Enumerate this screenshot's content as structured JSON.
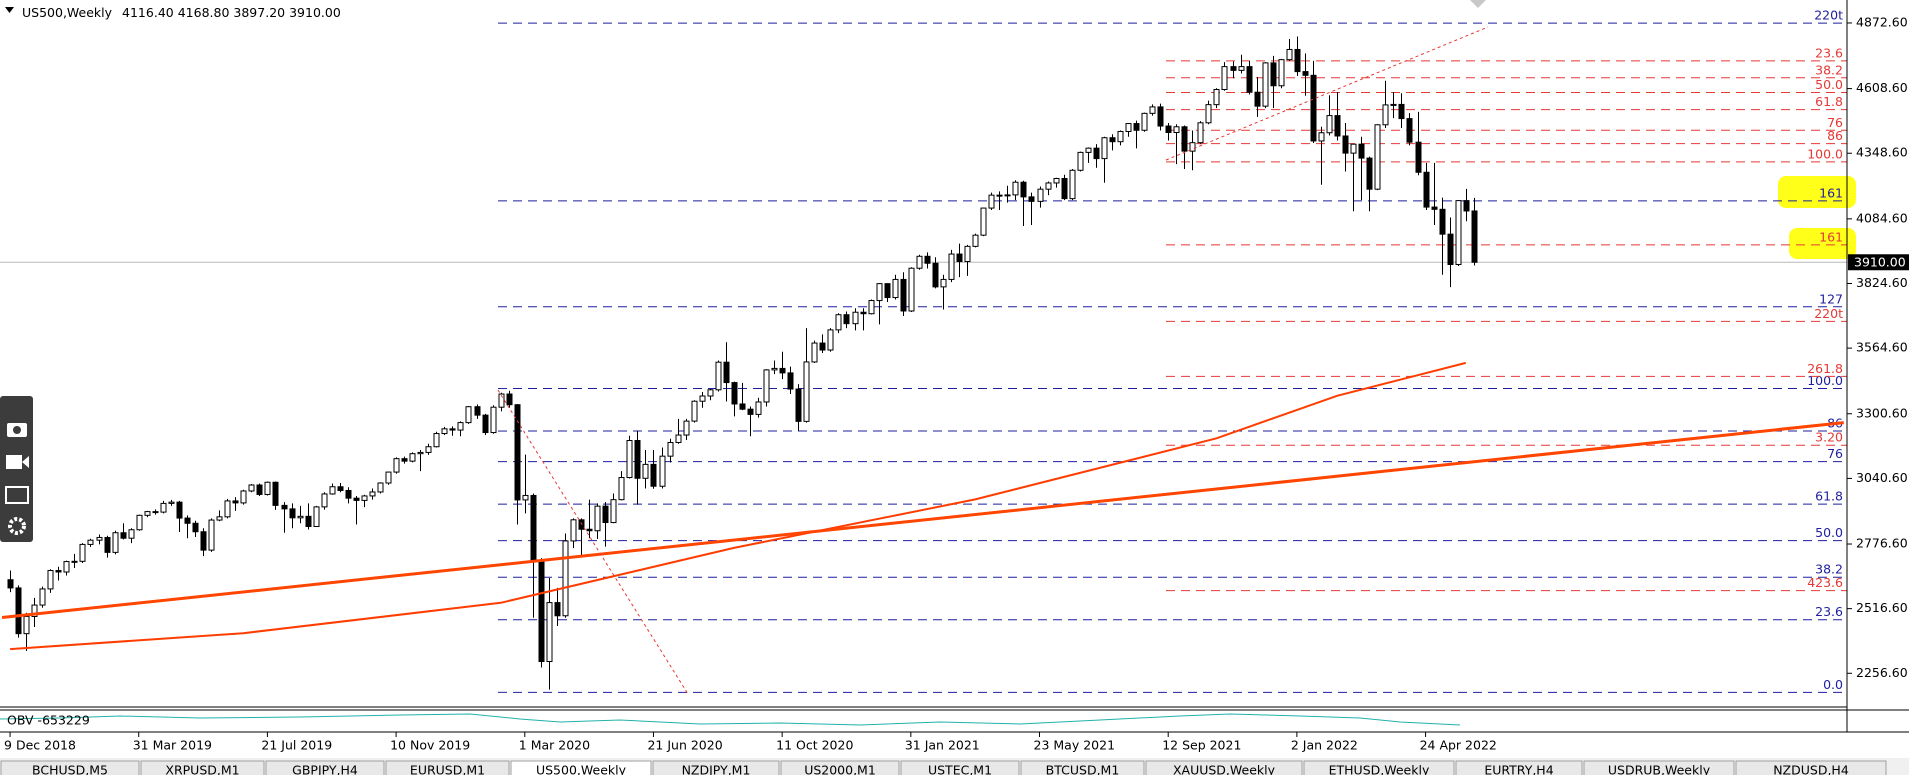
{
  "chart_data": {
    "type": "candlestick",
    "title": "US500,Weekly",
    "ohlc": [
      "4116.40",
      "4168.80",
      "3897.20",
      "3910.00"
    ],
    "ylim": [
      2125,
      4965
    ],
    "yticks": [
      {
        "value": 4872.6,
        "label": "4872.60"
      },
      {
        "value": 4608.6,
        "label": "4608.60"
      },
      {
        "value": 4348.6,
        "label": "4348.60"
      },
      {
        "value": 4084.6,
        "label": "4084.60"
      },
      {
        "value": 3824.6,
        "label": "3824.60"
      },
      {
        "value": 3564.6,
        "label": "3564.60"
      },
      {
        "value": 3300.6,
        "label": "3300.60"
      },
      {
        "value": 3040.6,
        "label": "3040.60"
      },
      {
        "value": 2776.6,
        "label": "2776.60"
      },
      {
        "value": 2516.6,
        "label": "2516.60"
      },
      {
        "value": 2256.6,
        "label": "2256.60"
      }
    ],
    "xlim": [
      -1.25,
      228.4
    ],
    "xticks": [
      {
        "value": 0,
        "label": "9 Dec 2018"
      },
      {
        "value": 16,
        "label": "31 Mar 2019"
      },
      {
        "value": 32,
        "label": "21 Jul 2019"
      },
      {
        "value": 48,
        "label": "10 Nov 2019"
      },
      {
        "value": 64,
        "label": "1 Mar 2020"
      },
      {
        "value": 80,
        "label": "21 Jun 2020"
      },
      {
        "value": 96,
        "label": "11 Oct 2020"
      },
      {
        "value": 112,
        "label": "31 Jan 2021"
      },
      {
        "value": 128,
        "label": "23 May 2021"
      },
      {
        "value": 144,
        "label": "12 Sep 2021"
      },
      {
        "value": 160,
        "label": "2 Jan 2022"
      },
      {
        "value": 176,
        "label": "24 Apr 2022"
      }
    ],
    "bull_color": "#ffffff",
    "bear_color": "#000000",
    "candles": [
      [
        2633,
        2670,
        2583,
        2600
      ],
      [
        2600,
        2610,
        2400,
        2416
      ],
      [
        2416,
        2500,
        2346,
        2485
      ],
      [
        2485,
        2560,
        2443,
        2531
      ],
      [
        2531,
        2605,
        2520,
        2596
      ],
      [
        2596,
        2675,
        2580,
        2670
      ],
      [
        2670,
        2685,
        2630,
        2664
      ],
      [
        2664,
        2710,
        2650,
        2706
      ],
      [
        2706,
        2737,
        2680,
        2707
      ],
      [
        2707,
        2780,
        2700,
        2775
      ],
      [
        2775,
        2798,
        2765,
        2792
      ],
      [
        2792,
        2815,
        2775,
        2803
      ],
      [
        2803,
        2810,
        2722,
        2743
      ],
      [
        2743,
        2830,
        2735,
        2822
      ],
      [
        2822,
        2860,
        2795,
        2800
      ],
      [
        2800,
        2840,
        2780,
        2834
      ],
      [
        2834,
        2895,
        2830,
        2892
      ],
      [
        2892,
        2910,
        2885,
        2907
      ],
      [
        2907,
        2916,
        2895,
        2905
      ],
      [
        2905,
        2950,
        2900,
        2940
      ],
      [
        2940,
        2954,
        2930,
        2945
      ],
      [
        2945,
        2950,
        2825,
        2881
      ],
      [
        2881,
        2892,
        2800,
        2860
      ],
      [
        2860,
        2870,
        2805,
        2826
      ],
      [
        2826,
        2840,
        2728,
        2752
      ],
      [
        2752,
        2880,
        2745,
        2873
      ],
      [
        2873,
        2912,
        2868,
        2886
      ],
      [
        2886,
        2958,
        2880,
        2950
      ],
      [
        2950,
        2965,
        2910,
        2942
      ],
      [
        2942,
        2995,
        2935,
        2990
      ],
      [
        2990,
        3018,
        2985,
        3014
      ],
      [
        3014,
        3020,
        2970,
        2976
      ],
      [
        2976,
        3028,
        2972,
        3025
      ],
      [
        3025,
        3028,
        2914,
        2932
      ],
      [
        2932,
        2945,
        2822,
        2918
      ],
      [
        2918,
        2940,
        2840,
        2882
      ],
      [
        2882,
        2930,
        2860,
        2888
      ],
      [
        2888,
        2940,
        2835,
        2847
      ],
      [
        2847,
        2930,
        2845,
        2926
      ],
      [
        2926,
        2985,
        2915,
        2978
      ],
      [
        2978,
        3020,
        2975,
        3007
      ],
      [
        3007,
        3022,
        2985,
        2992
      ],
      [
        2992,
        3005,
        2940,
        2961
      ],
      [
        2961,
        2970,
        2855,
        2952
      ],
      [
        2952,
        2975,
        2925,
        2970
      ],
      [
        2970,
        3000,
        2955,
        2986
      ],
      [
        2986,
        3025,
        2980,
        3022
      ],
      [
        3022,
        3068,
        3015,
        3066
      ],
      [
        3066,
        3125,
        3060,
        3120
      ],
      [
        3120,
        3128,
        3100,
        3110
      ],
      [
        3110,
        3145,
        3105,
        3140
      ],
      [
        3140,
        3155,
        3070,
        3145
      ],
      [
        3145,
        3180,
        3135,
        3168
      ],
      [
        3168,
        3228,
        3165,
        3221
      ],
      [
        3221,
        3248,
        3215,
        3240
      ],
      [
        3240,
        3250,
        3212,
        3235
      ],
      [
        3235,
        3270,
        3210,
        3265
      ],
      [
        3265,
        3332,
        3260,
        3329
      ],
      [
        3329,
        3338,
        3280,
        3295
      ],
      [
        3295,
        3300,
        3215,
        3225
      ],
      [
        3225,
        3335,
        3220,
        3327
      ],
      [
        3327,
        3385,
        3310,
        3380
      ],
      [
        3380,
        3393,
        3325,
        3337
      ],
      [
        3337,
        3340,
        2855,
        2954
      ],
      [
        2954,
        3136,
        2900,
        2972
      ],
      [
        2972,
        2980,
        2480,
        2711
      ],
      [
        2711,
        2720,
        2280,
        2304
      ],
      [
        2304,
        2640,
        2191,
        2541
      ],
      [
        2541,
        2600,
        2447,
        2488
      ],
      [
        2488,
        2819,
        2480,
        2789
      ],
      [
        2789,
        2880,
        2760,
        2874
      ],
      [
        2874,
        2880,
        2725,
        2836
      ],
      [
        2836,
        2955,
        2800,
        2830
      ],
      [
        2830,
        2940,
        2797,
        2929
      ],
      [
        2929,
        2945,
        2766,
        2863
      ],
      [
        2863,
        2980,
        2860,
        2955
      ],
      [
        2955,
        3070,
        2952,
        3044
      ],
      [
        3044,
        3212,
        3040,
        3193
      ],
      [
        3193,
        3233,
        2935,
        3041
      ],
      [
        3041,
        3155,
        3000,
        3097
      ],
      [
        3097,
        3155,
        2999,
        3009
      ],
      [
        3009,
        3165,
        3000,
        3130
      ],
      [
        3130,
        3200,
        3105,
        3185
      ],
      [
        3185,
        3280,
        3180,
        3215
      ],
      [
        3215,
        3280,
        3195,
        3271
      ],
      [
        3271,
        3355,
        3265,
        3351
      ],
      [
        3351,
        3388,
        3325,
        3372
      ],
      [
        3372,
        3400,
        3355,
        3397
      ],
      [
        3397,
        3515,
        3390,
        3508
      ],
      [
        3508,
        3588,
        3350,
        3426
      ],
      [
        3426,
        3430,
        3290,
        3340
      ],
      [
        3340,
        3425,
        3315,
        3319
      ],
      [
        3319,
        3330,
        3210,
        3298
      ],
      [
        3298,
        3365,
        3285,
        3348
      ],
      [
        3348,
        3480,
        3330,
        3477
      ],
      [
        3477,
        3515,
        3460,
        3483
      ],
      [
        3483,
        3550,
        3440,
        3465
      ],
      [
        3465,
        3490,
        3380,
        3400
      ],
      [
        3400,
        3420,
        3233,
        3270
      ],
      [
        3270,
        3645,
        3265,
        3509
      ],
      [
        3509,
        3595,
        3505,
        3585
      ],
      [
        3585,
        3620,
        3545,
        3557
      ],
      [
        3557,
        3645,
        3550,
        3638
      ],
      [
        3638,
        3705,
        3625,
        3699
      ],
      [
        3699,
        3712,
        3645,
        3663
      ],
      [
        3663,
        3725,
        3636,
        3709
      ],
      [
        3709,
        3725,
        3636,
        3703
      ],
      [
        3703,
        3760,
        3700,
        3756
      ],
      [
        3756,
        3826,
        3660,
        3824
      ],
      [
        3824,
        3825,
        3750,
        3768
      ],
      [
        3768,
        3860,
        3760,
        3841
      ],
      [
        3841,
        3870,
        3694,
        3714
      ],
      [
        3714,
        3890,
        3710,
        3886
      ],
      [
        3886,
        3940,
        3880,
        3934
      ],
      [
        3934,
        3950,
        3885,
        3906
      ],
      [
        3906,
        3930,
        3805,
        3811
      ],
      [
        3811,
        3860,
        3720,
        3841
      ],
      [
        3841,
        3960,
        3830,
        3943
      ],
      [
        3943,
        3985,
        3850,
        3913
      ],
      [
        3913,
        3980,
        3855,
        3974
      ],
      [
        3974,
        4025,
        3970,
        4019
      ],
      [
        4019,
        4130,
        4015,
        4128
      ],
      [
        4128,
        4190,
        4120,
        4180
      ],
      [
        4180,
        4195,
        4120,
        4180
      ],
      [
        4180,
        4218,
        4150,
        4181
      ],
      [
        4181,
        4240,
        4160,
        4232
      ],
      [
        4232,
        4238,
        4056,
        4173
      ],
      [
        4173,
        4190,
        4060,
        4155
      ],
      [
        4155,
        4215,
        4130,
        4204
      ],
      [
        4204,
        4235,
        4180,
        4229
      ],
      [
        4229,
        4250,
        4210,
        4247
      ],
      [
        4247,
        4262,
        4160,
        4166
      ],
      [
        4166,
        4285,
        4160,
        4280
      ],
      [
        4280,
        4355,
        4275,
        4352
      ],
      [
        4352,
        4372,
        4310,
        4369
      ],
      [
        4369,
        4385,
        4290,
        4327
      ],
      [
        4327,
        4415,
        4230,
        4411
      ],
      [
        4411,
        4425,
        4360,
        4395
      ],
      [
        4395,
        4440,
        4380,
        4436
      ],
      [
        4436,
        4470,
        4415,
        4468
      ],
      [
        4468,
        4480,
        4368,
        4441
      ],
      [
        4441,
        4512,
        4435,
        4509
      ],
      [
        4509,
        4545,
        4500,
        4535
      ],
      [
        4535,
        4548,
        4440,
        4458
      ],
      [
        4458,
        4470,
        4400,
        4432
      ],
      [
        4432,
        4465,
        4305,
        4455
      ],
      [
        4455,
        4460,
        4285,
        4357
      ],
      [
        4357,
        4440,
        4280,
        4391
      ],
      [
        4391,
        4478,
        4385,
        4471
      ],
      [
        4471,
        4560,
        4465,
        4544
      ],
      [
        4544,
        4610,
        4530,
        4605
      ],
      [
        4605,
        4715,
        4600,
        4697
      ],
      [
        4697,
        4718,
        4650,
        4682
      ],
      [
        4682,
        4745,
        4670,
        4697
      ],
      [
        4697,
        4720,
        4585,
        4594
      ],
      [
        4594,
        4655,
        4495,
        4538
      ],
      [
        4538,
        4715,
        4530,
        4712
      ],
      [
        4712,
        4740,
        4530,
        4620
      ],
      [
        4620,
        4728,
        4610,
        4725
      ],
      [
        4725,
        4808,
        4720,
        4766
      ],
      [
        4766,
        4818,
        4660,
        4677
      ],
      [
        4677,
        4750,
        4580,
        4662
      ],
      [
        4662,
        4720,
        4390,
        4398
      ],
      [
        4398,
        4455,
        4222,
        4431
      ],
      [
        4431,
        4582,
        4420,
        4500
      ],
      [
        4500,
        4595,
        4400,
        4418
      ],
      [
        4418,
        4470,
        4275,
        4349
      ],
      [
        4349,
        4385,
        4115,
        4385
      ],
      [
        4385,
        4415,
        4160,
        4329
      ],
      [
        4329,
        4335,
        4115,
        4204
      ],
      [
        4204,
        4465,
        4200,
        4463
      ],
      [
        4463,
        4640,
        4450,
        4543
      ],
      [
        4543,
        4595,
        4490,
        4545
      ],
      [
        4545,
        4590,
        4450,
        4488
      ],
      [
        4488,
        4510,
        4380,
        4393
      ],
      [
        4393,
        4515,
        4260,
        4272
      ],
      [
        4272,
        4310,
        4120,
        4132
      ],
      [
        4132,
        4310,
        4060,
        4123
      ],
      [
        4123,
        4170,
        3860,
        4023
      ],
      [
        4023,
        4090,
        3810,
        3901
      ],
      [
        3901,
        4160,
        3895,
        4158
      ],
      [
        4158,
        4205,
        4075,
        4116.4
      ],
      [
        4116.4,
        4168.8,
        3897.2,
        3910
      ]
    ],
    "price_tag": {
      "value": 3910,
      "label": "3910.00"
    },
    "fib_blue": {
      "color": "#1f1f9e",
      "levels": [
        {
          "value": 4872,
          "label": "220t"
        },
        {
          "value": 4157,
          "label": "161"
        },
        {
          "value": 3731,
          "label": "127"
        },
        {
          "value": 3402,
          "label": "100.0"
        },
        {
          "value": 3231,
          "label": "86"
        },
        {
          "value": 3108,
          "label": "76"
        },
        {
          "value": 2937,
          "label": "61.8"
        },
        {
          "value": 2790,
          "label": "50.0"
        },
        {
          "value": 2643,
          "label": "38.2"
        },
        {
          "value": 2472,
          "label": "23.6"
        },
        {
          "value": 2180,
          "label": "0.0"
        }
      ]
    },
    "fib_red": {
      "color": "#e53935",
      "levels": [
        {
          "value": 4720,
          "label": "23.6"
        },
        {
          "value": 4652,
          "label": "38.2"
        },
        {
          "value": 4593,
          "label": "50.0"
        },
        {
          "value": 4524,
          "label": "61.8"
        },
        {
          "value": 4441,
          "label": "76"
        },
        {
          "value": 4387,
          "label": "86"
        },
        {
          "value": 4314,
          "label": "100.0"
        },
        {
          "value": 3980,
          "label": "161"
        },
        {
          "value": 3672,
          "label": "220t"
        },
        {
          "value": 3451,
          "label": "261.8"
        },
        {
          "value": 3174,
          "label": "3.20"
        },
        {
          "value": 2589,
          "label": "423.6"
        }
      ]
    },
    "ma": {
      "color": "#ff3d00",
      "x": [
        0,
        29,
        61,
        90,
        120,
        150,
        165,
        181
      ],
      "values": [
        2354,
        2418,
        2540,
        2761,
        2956,
        3202,
        3373,
        3505
      ]
    },
    "trendline": {
      "color": "#ff4500",
      "x": [
        -1,
        228
      ],
      "values": [
        2481,
        3265
      ]
    },
    "obv_label": "OBV -653229"
  },
  "tabs": [
    "BCHUSD,M5",
    "XRPUSD,M1",
    "GBPJPY,H4",
    "EURUSD,M1",
    "US500,Weekly",
    "NZDJPY,M1",
    "US2000,M1",
    "USTEC,M1",
    "BTCUSD,M1",
    "XAUUSD,Weekly",
    "ETHUSD,Weekly",
    "EURTRY,H4",
    "USDRUB,Weekly",
    "NZDUSD,H4"
  ]
}
